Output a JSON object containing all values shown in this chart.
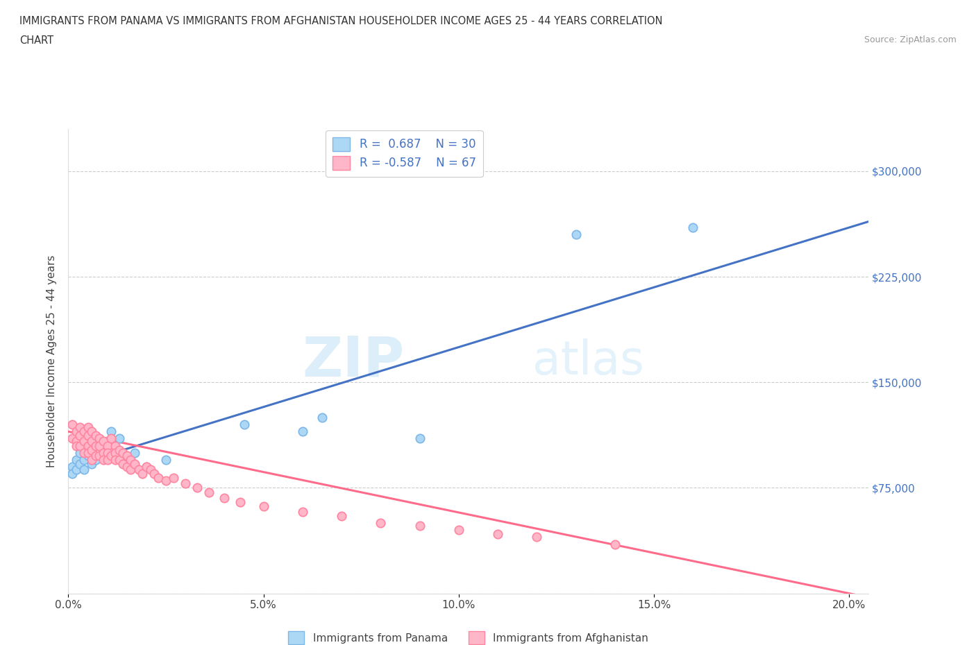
{
  "title_line1": "IMMIGRANTS FROM PANAMA VS IMMIGRANTS FROM AFGHANISTAN HOUSEHOLDER INCOME AGES 25 - 44 YEARS CORRELATION",
  "title_line2": "CHART",
  "source_text": "Source: ZipAtlas.com",
  "ylabel": "Householder Income Ages 25 - 44 years",
  "xlim": [
    0.0,
    0.205
  ],
  "ylim": [
    0,
    330000
  ],
  "x_ticks": [
    0.0,
    0.05,
    0.1,
    0.15,
    0.2
  ],
  "x_tick_labels": [
    "0.0%",
    "5.0%",
    "10.0%",
    "15.0%",
    "20.0%"
  ],
  "y_ticks": [
    0,
    75000,
    150000,
    225000,
    300000
  ],
  "y_tick_labels": [
    "$75,000",
    "$150,000",
    "$225,000",
    "$300,000"
  ],
  "panama_color": "#ADD8F5",
  "panama_edge_color": "#7EB6E8",
  "afghanistan_color": "#FFB6C8",
  "afghanistan_edge_color": "#FF85A0",
  "trend_panama_color": "#4472C4",
  "trend_afghanistan_color": "#FF6B8A",
  "R_panama": 0.687,
  "N_panama": 30,
  "R_afghanistan": -0.587,
  "N_afghanistan": 67,
  "legend_label_panama": "Immigrants from Panama",
  "legend_label_afghanistan": "Immigrants from Afghanistan",
  "watermark_zip": "ZIP",
  "watermark_atlas": "atlas",
  "panama_x": [
    0.001,
    0.001,
    0.002,
    0.002,
    0.003,
    0.003,
    0.004,
    0.004,
    0.005,
    0.005,
    0.006,
    0.006,
    0.007,
    0.007,
    0.008,
    0.009,
    0.01,
    0.011,
    0.012,
    0.013,
    0.015,
    0.017,
    0.02,
    0.025,
    0.045,
    0.06,
    0.065,
    0.09,
    0.13,
    0.16
  ],
  "panama_y": [
    90000,
    85000,
    95000,
    88000,
    100000,
    92000,
    95000,
    88000,
    105000,
    98000,
    100000,
    92000,
    110000,
    95000,
    105000,
    100000,
    108000,
    115000,
    105000,
    110000,
    95000,
    100000,
    90000,
    95000,
    120000,
    115000,
    125000,
    110000,
    255000,
    260000
  ],
  "afghanistan_x": [
    0.001,
    0.001,
    0.002,
    0.002,
    0.002,
    0.003,
    0.003,
    0.003,
    0.004,
    0.004,
    0.004,
    0.005,
    0.005,
    0.005,
    0.005,
    0.006,
    0.006,
    0.006,
    0.006,
    0.007,
    0.007,
    0.007,
    0.008,
    0.008,
    0.008,
    0.009,
    0.009,
    0.009,
    0.01,
    0.01,
    0.01,
    0.011,
    0.011,
    0.012,
    0.012,
    0.012,
    0.013,
    0.013,
    0.014,
    0.014,
    0.015,
    0.015,
    0.016,
    0.016,
    0.017,
    0.018,
    0.019,
    0.02,
    0.021,
    0.022,
    0.023,
    0.025,
    0.027,
    0.03,
    0.033,
    0.036,
    0.04,
    0.044,
    0.05,
    0.06,
    0.07,
    0.08,
    0.09,
    0.1,
    0.11,
    0.12,
    0.14
  ],
  "afghanistan_y": [
    120000,
    110000,
    115000,
    108000,
    105000,
    118000,
    112000,
    105000,
    115000,
    108000,
    100000,
    118000,
    112000,
    105000,
    100000,
    115000,
    108000,
    102000,
    95000,
    112000,
    105000,
    98000,
    110000,
    105000,
    98000,
    108000,
    100000,
    95000,
    105000,
    100000,
    95000,
    110000,
    98000,
    105000,
    100000,
    95000,
    102000,
    95000,
    100000,
    92000,
    98000,
    90000,
    95000,
    88000,
    92000,
    88000,
    85000,
    90000,
    88000,
    85000,
    82000,
    80000,
    82000,
    78000,
    75000,
    72000,
    68000,
    65000,
    62000,
    58000,
    55000,
    50000,
    48000,
    45000,
    42000,
    40000,
    35000
  ]
}
